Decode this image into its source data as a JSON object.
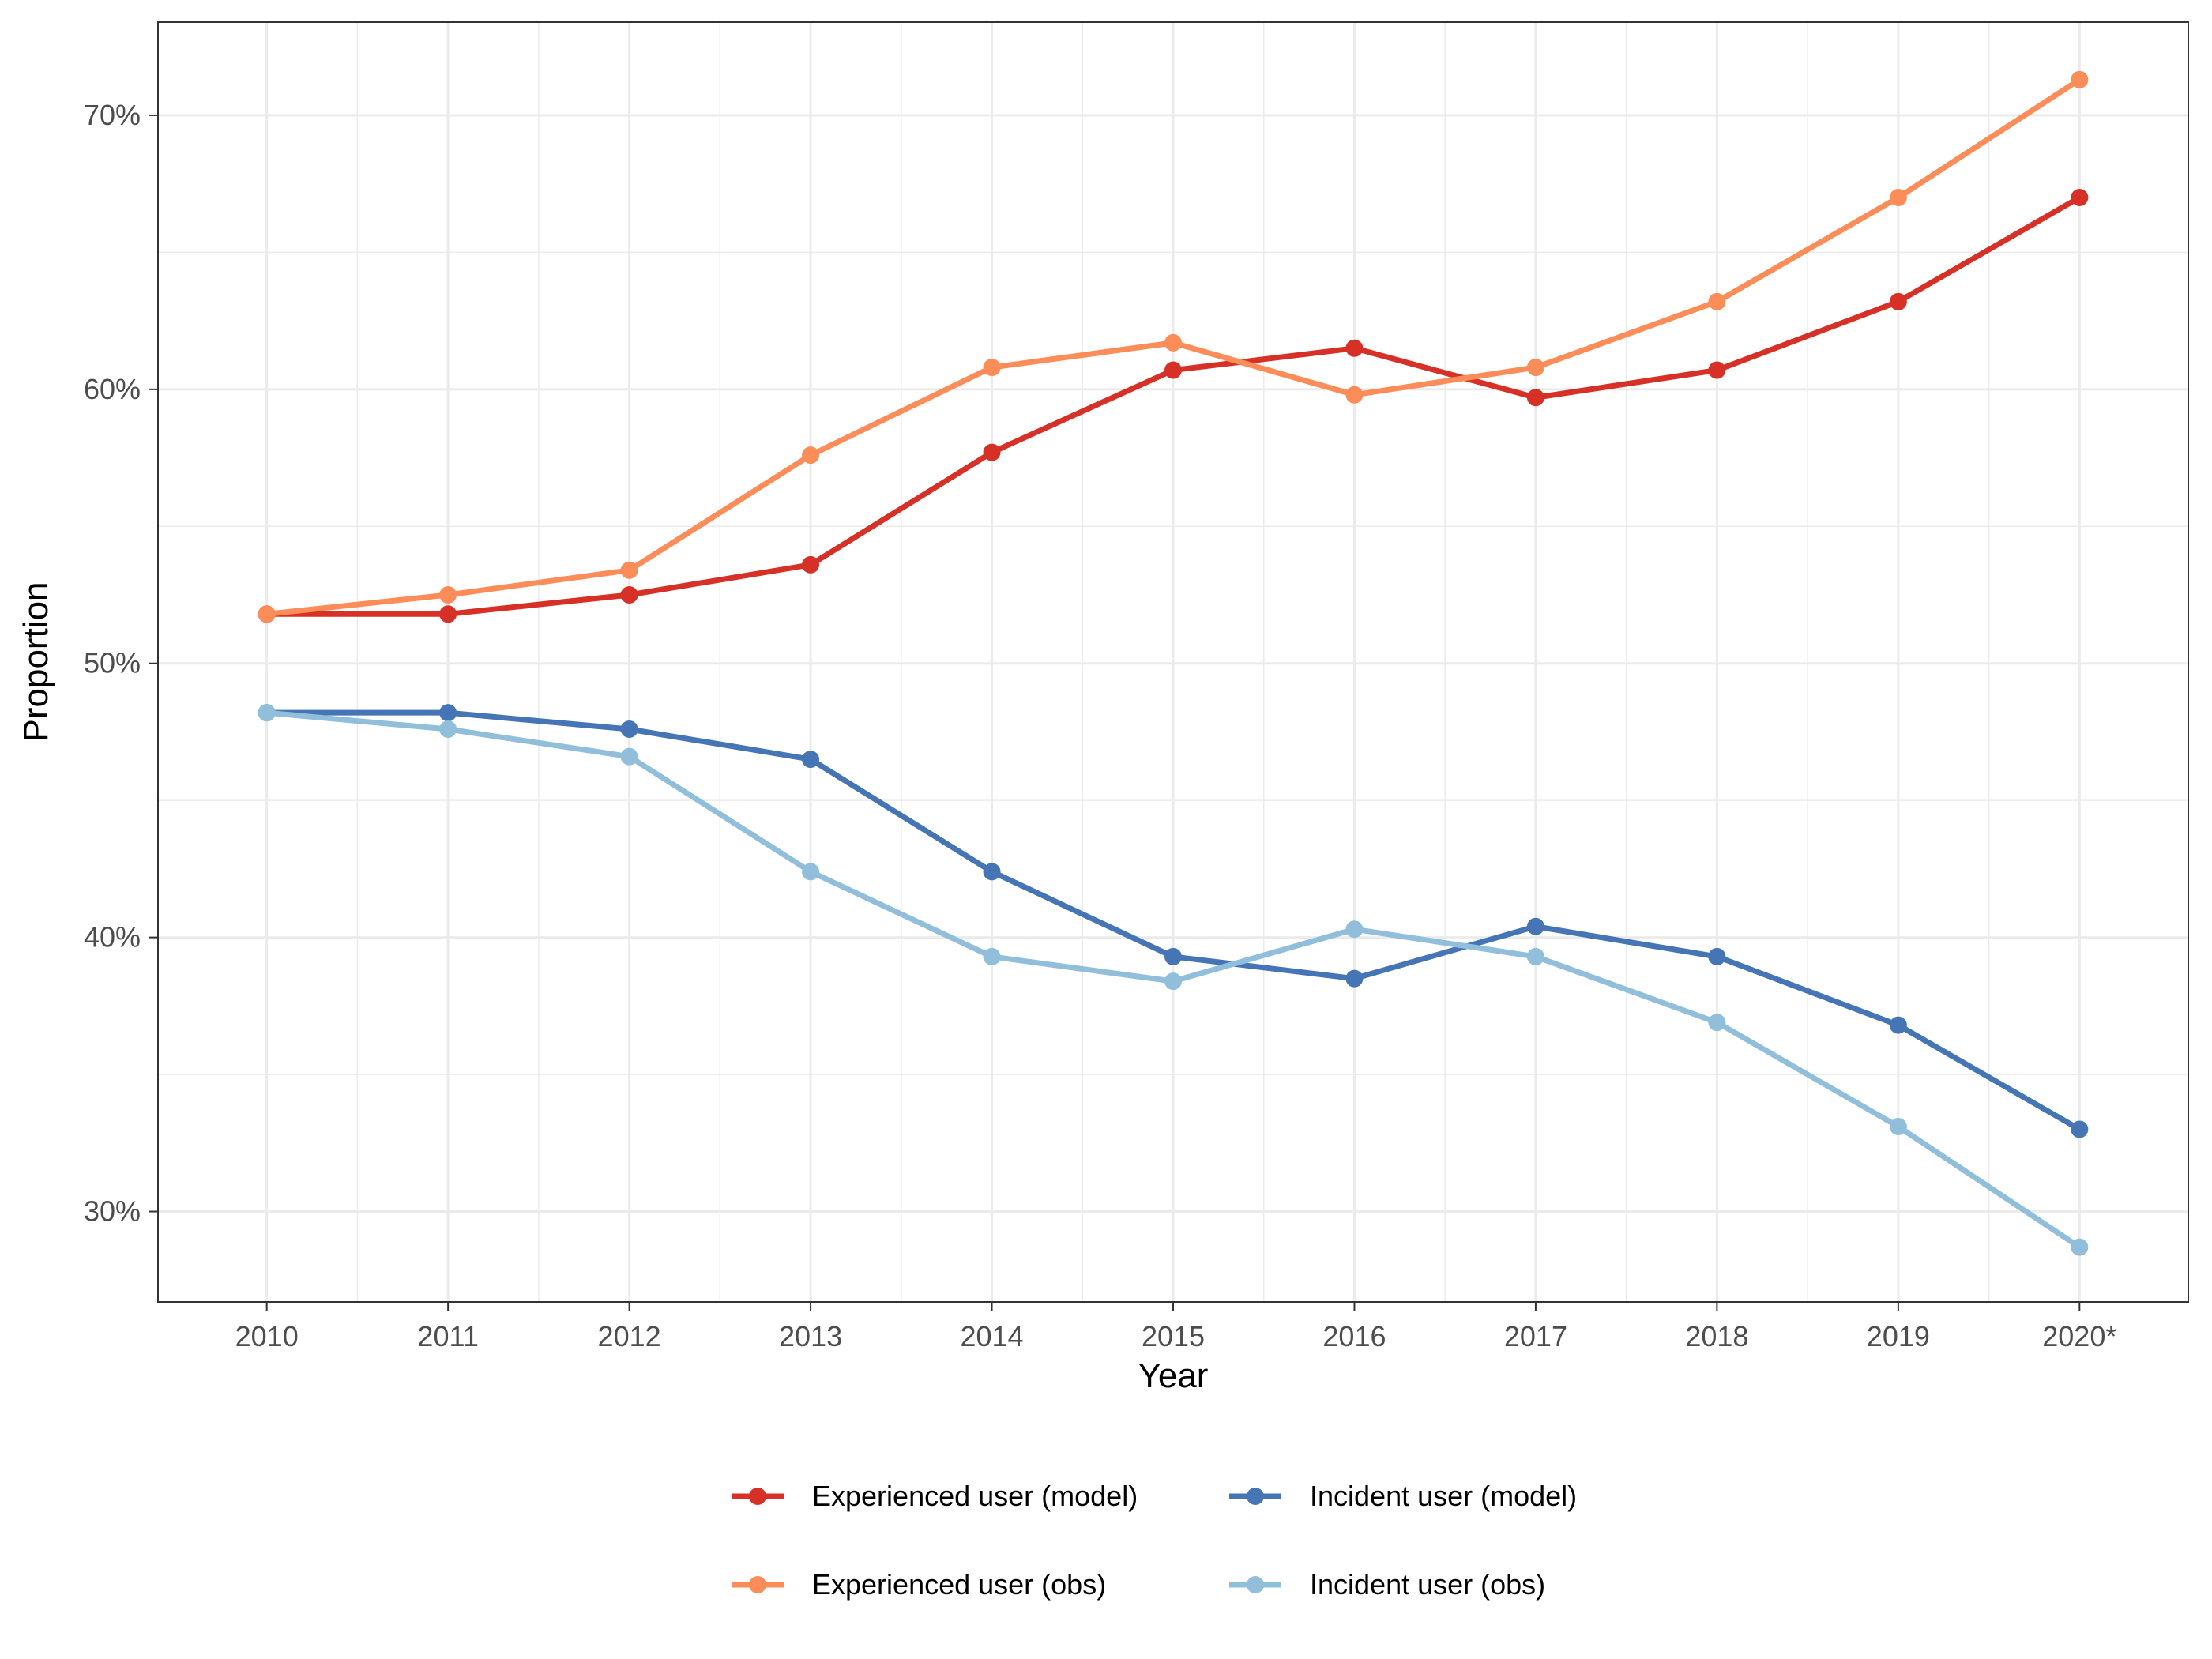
{
  "chart_data": {
    "type": "line",
    "xlabel": "Year",
    "ylabel": "Proportion",
    "categories": [
      "2010",
      "2011",
      "2012",
      "2013",
      "2014",
      "2015",
      "2016",
      "2017",
      "2018",
      "2019",
      "2020*"
    ],
    "ylim": [
      0.267,
      0.734
    ],
    "y_ticks": [
      0.3,
      0.4,
      0.5,
      0.6,
      0.7
    ],
    "y_tick_labels": [
      "30%",
      "40%",
      "50%",
      "60%",
      "70%"
    ],
    "grid": true,
    "legend_position": "bottom",
    "series": [
      {
        "name": "Experienced user (model)",
        "color": "#d73027",
        "values": [
          0.518,
          0.518,
          0.525,
          0.536,
          0.577,
          0.607,
          0.615,
          0.597,
          0.607,
          0.632,
          0.67
        ]
      },
      {
        "name": "Incident user (model)",
        "color": "#4575b4",
        "values": [
          0.482,
          0.482,
          0.476,
          0.465,
          0.424,
          0.393,
          0.385,
          0.404,
          0.393,
          0.368,
          0.33
        ]
      },
      {
        "name": "Experienced user (obs)",
        "color": "#fc8d59",
        "values": [
          0.518,
          0.525,
          0.534,
          0.576,
          0.608,
          0.617,
          0.598,
          0.608,
          0.632,
          0.67,
          0.713
        ]
      },
      {
        "name": "Incident user (obs)",
        "color": "#91bfdb",
        "values": [
          0.482,
          0.476,
          0.466,
          0.424,
          0.393,
          0.384,
          0.403,
          0.393,
          0.369,
          0.331,
          0.287
        ]
      }
    ]
  }
}
